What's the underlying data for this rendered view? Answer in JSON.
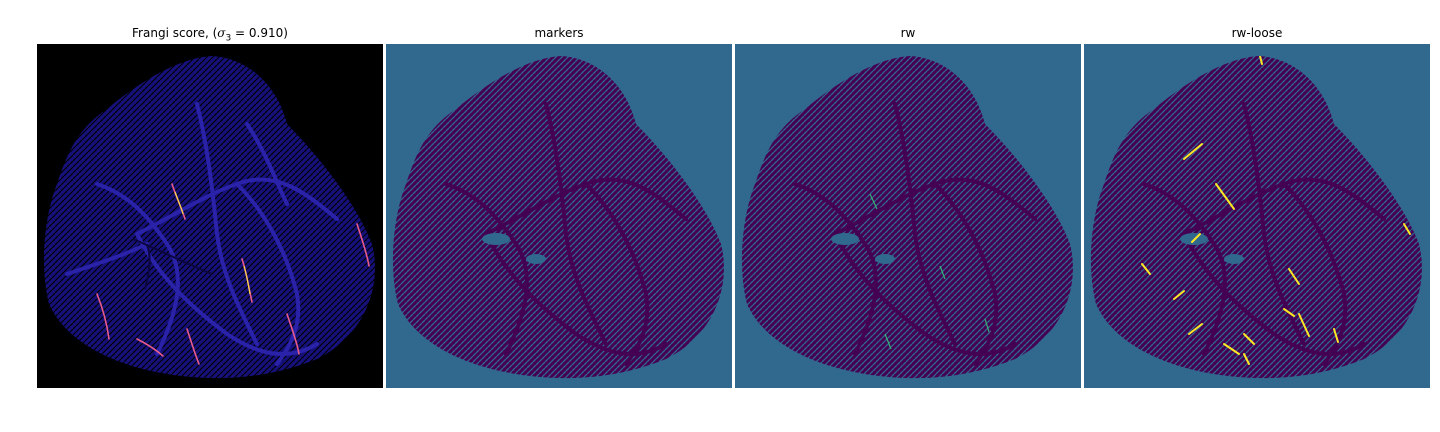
{
  "figure": {
    "panels": [
      {
        "id": "frangi",
        "title_prefix": "Frangi score, (",
        "sigma_symbol": "σ",
        "sigma_sub": "3",
        "title_eq": " = 0.910",
        "title_suffix": ")",
        "colors": {
          "background": "#000000",
          "fill": "#1a0f8f",
          "vessel": "#3a2fb5",
          "highlight": "#e85a8a"
        }
      },
      {
        "id": "markers",
        "title": "markers",
        "colors": {
          "background": "#31688e",
          "fill": "#440154",
          "marker": "#35b779"
        }
      },
      {
        "id": "rw",
        "title": "rw",
        "colors": {
          "background": "#31688e",
          "fill": "#440154",
          "marker": "#35b779"
        }
      },
      {
        "id": "rw-loose",
        "title": "rw-loose",
        "colors": {
          "background": "#31688e",
          "fill": "#440154",
          "marker": "#fde725"
        }
      }
    ]
  }
}
